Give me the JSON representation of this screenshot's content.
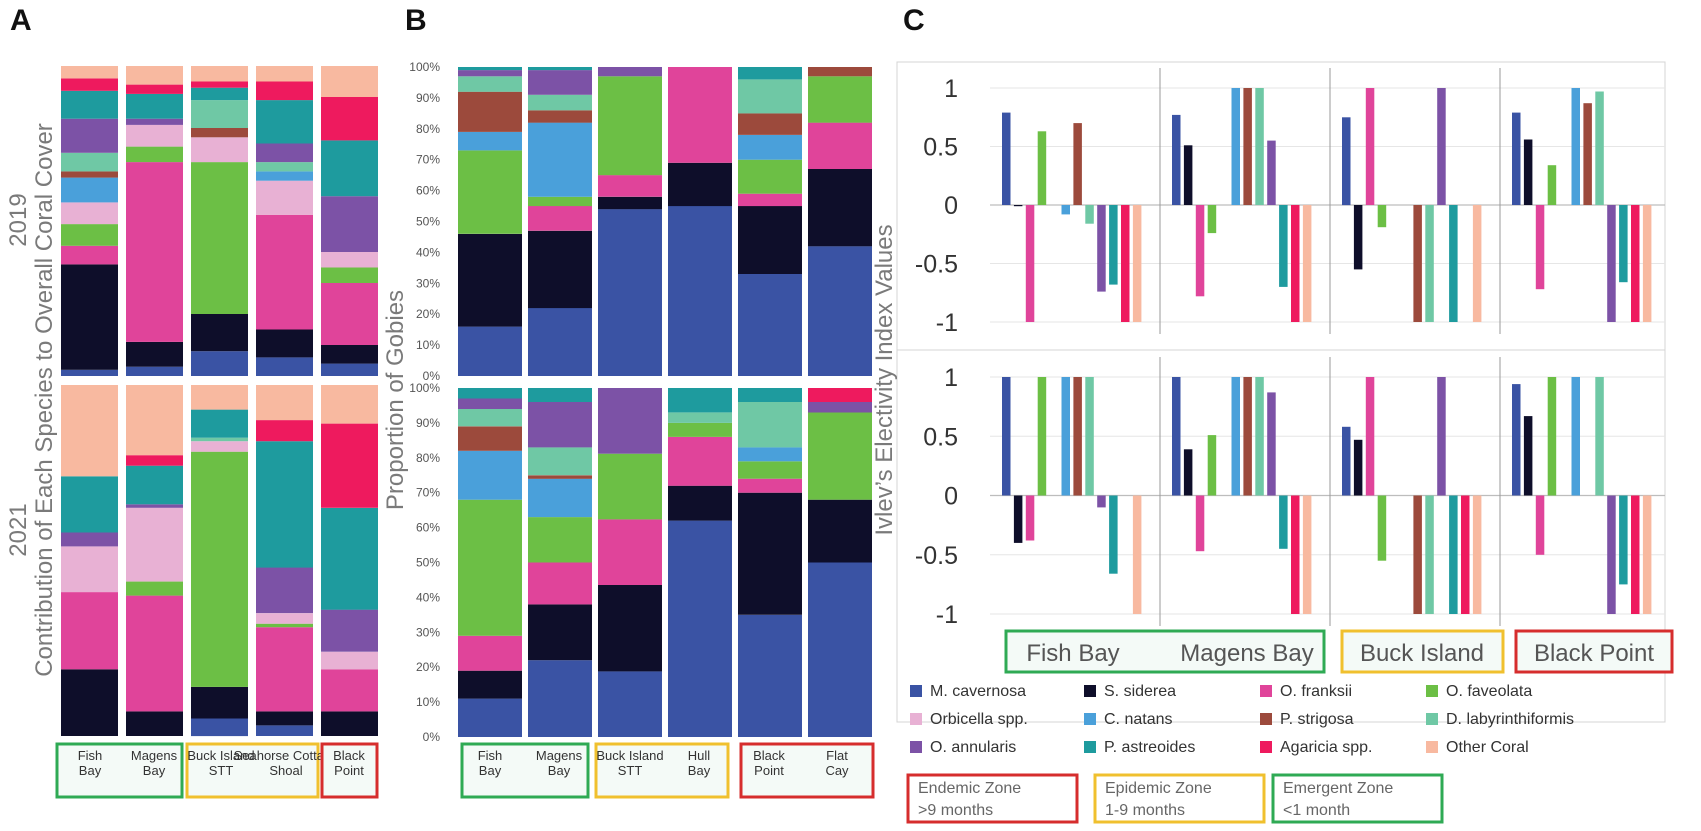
{
  "panel_letters": [
    "A",
    "B",
    "C"
  ],
  "colors": {
    "M. cavernosa": "#3a53a4",
    "S. siderea": "#0e0e2a",
    "O. franksii": "#e0449a",
    "O. faveolata": "#6cbf45",
    "Orbicella spp.": "#e8b1d4",
    "C. natans": "#4aa0da",
    "P. strigosa": "#9c4a3c",
    "D. labyrinthiformis": "#6fc8a5",
    "O. annularis": "#7c52a6",
    "P. astreoides": "#1e9b9e",
    "Agaricia spp.": "#ee1a5e",
    "Other Coral": "#f8b9a0",
    "zone_endemic": "#d62d2d",
    "zone_epidemic": "#f0c02e",
    "zone_emergent": "#2faa54"
  },
  "panelA": {
    "ylabel_2019": "2019",
    "ylabel_2021": "2021",
    "ylabel_main": "Contribution of Each Species to Overall Coral Cover",
    "sites": [
      "Fish Bay",
      "Magens Bay",
      "Buck Island STT",
      "Seahorse Cottage Shoal",
      "Black Point"
    ]
  },
  "panelB": {
    "ylabel": "Proportion of Gobies",
    "sites": [
      "Fish Bay",
      "Magens Bay",
      "Buck Island STT",
      "Hull Bay",
      "Black Point",
      "Flat Cay"
    ],
    "yticks": [
      "0%",
      "10%",
      "20%",
      "30%",
      "40%",
      "50%",
      "60%",
      "70%",
      "80%",
      "90%",
      "100%"
    ]
  },
  "panelC": {
    "ylabel": "Ivlev’s Electivity Index Values",
    "yticks": [
      "1",
      "0.5",
      "0",
      "-0.5",
      "-1"
    ],
    "sites": [
      "Fish Bay",
      "Magens Bay",
      "Buck Island",
      "Black Point"
    ],
    "zones": [
      {
        "label": "Endemic Zone",
        "sub": ">9 months",
        "color": "zone_endemic"
      },
      {
        "label": "Epidemic Zone",
        "sub": "1-9 months",
        "color": "zone_epidemic"
      },
      {
        "label": "Emergent Zone",
        "sub": "<1 month",
        "color": "zone_emergent"
      }
    ]
  },
  "legend": [
    "M. cavernosa",
    "S. siderea",
    "O. franksii",
    "O. faveolata",
    "Orbicella spp.",
    "C. natans",
    "P. strigosa",
    "D. labyrinthiformis",
    "O. annularis",
    "P. astreoides",
    "Agaricia spp.",
    "Other Coral"
  ],
  "chart_data": [
    {
      "panel": "A",
      "type": "bar",
      "stacked": true,
      "title": "2019",
      "ylabel": "Contribution of Each Species to Overall Coral Cover",
      "categories": [
        "Fish Bay",
        "Magens Bay",
        "Buck Island STT",
        "Seahorse Cottage Shoal",
        "Black Point"
      ],
      "series": [
        {
          "name": "M. cavernosa",
          "values": [
            2,
            3,
            8,
            6,
            4
          ]
        },
        {
          "name": "S. siderea",
          "values": [
            34,
            8,
            12,
            9,
            6
          ]
        },
        {
          "name": "O. franksii",
          "values": [
            6,
            58,
            0,
            37,
            20
          ]
        },
        {
          "name": "O. faveolata",
          "values": [
            7,
            5,
            49,
            0,
            5
          ]
        },
        {
          "name": "Orbicella spp.",
          "values": [
            7,
            7,
            8,
            11,
            5
          ]
        },
        {
          "name": "C. natans",
          "values": [
            8,
            0,
            0,
            3,
            0
          ]
        },
        {
          "name": "P. strigosa",
          "values": [
            2,
            0,
            3,
            0,
            0
          ]
        },
        {
          "name": "D. labyrinthiformis",
          "values": [
            6,
            0,
            9,
            3,
            0
          ]
        },
        {
          "name": "O. annularis",
          "values": [
            11,
            2,
            0,
            6,
            18
          ]
        },
        {
          "name": "P. astreoides",
          "values": [
            9,
            8,
            4,
            14,
            18
          ]
        },
        {
          "name": "Agaricia spp.",
          "values": [
            4,
            3,
            2,
            6,
            14
          ]
        },
        {
          "name": "Other Coral",
          "values": [
            4,
            6,
            5,
            5,
            10
          ]
        }
      ]
    },
    {
      "panel": "A",
      "type": "bar",
      "stacked": true,
      "title": "2021",
      "ylabel": "Contribution of Each Species to Overall Coral Cover",
      "categories": [
        "Fish Bay",
        "Magens Bay",
        "Buck Island STT",
        "Seahorse Cottage Shoal",
        "Black Point"
      ],
      "series": [
        {
          "name": "M. cavernosa",
          "values": [
            0,
            0,
            5,
            3,
            0
          ]
        },
        {
          "name": "S. siderea",
          "values": [
            19,
            7,
            9,
            4,
            7
          ]
        },
        {
          "name": "O. franksii",
          "values": [
            22,
            33,
            0,
            24,
            12
          ]
        },
        {
          "name": "O. faveolata",
          "values": [
            0,
            4,
            67,
            1,
            0
          ]
        },
        {
          "name": "Orbicella spp.",
          "values": [
            13,
            21,
            3,
            3,
            5
          ]
        },
        {
          "name": "C. natans",
          "values": [
            0,
            0,
            0,
            0,
            0
          ]
        },
        {
          "name": "P. strigosa",
          "values": [
            0,
            0,
            0,
            0,
            0
          ]
        },
        {
          "name": "D. labyrinthiformis",
          "values": [
            0,
            0,
            1,
            0,
            0
          ]
        },
        {
          "name": "O. annularis",
          "values": [
            4,
            1,
            0,
            13,
            12
          ]
        },
        {
          "name": "P. astreoides",
          "values": [
            16,
            11,
            8,
            36,
            29
          ]
        },
        {
          "name": "Agaricia spp.",
          "values": [
            0,
            3,
            0,
            6,
            24
          ]
        },
        {
          "name": "Other Coral",
          "values": [
            26,
            20,
            7,
            10,
            11
          ]
        }
      ]
    },
    {
      "panel": "B",
      "type": "bar",
      "stacked": true,
      "title": "2019",
      "ylabel": "Proportion of Gobies",
      "ylim": [
        0,
        100
      ],
      "categories": [
        "Fish Bay",
        "Magens Bay",
        "Buck Island STT",
        "Hull Bay",
        "Black Point",
        "Flat Cay"
      ],
      "series": [
        {
          "name": "M. cavernosa",
          "values": [
            16,
            22,
            54,
            55,
            33,
            42
          ]
        },
        {
          "name": "S. siderea",
          "values": [
            30,
            25,
            4,
            14,
            22,
            25
          ]
        },
        {
          "name": "O. franksii",
          "values": [
            0,
            8,
            7,
            31,
            4,
            15
          ]
        },
        {
          "name": "O. faveolata",
          "values": [
            27,
            3,
            32,
            0,
            11,
            15
          ]
        },
        {
          "name": "Orbicella spp.",
          "values": [
            0,
            0,
            0,
            0,
            0,
            0
          ]
        },
        {
          "name": "C. natans",
          "values": [
            6,
            24,
            0,
            0,
            8,
            0
          ]
        },
        {
          "name": "P. strigosa",
          "values": [
            13,
            4,
            0,
            0,
            7,
            3
          ]
        },
        {
          "name": "D. labyrinthiformis",
          "values": [
            5,
            5,
            0,
            0,
            11,
            0
          ]
        },
        {
          "name": "O. annularis",
          "values": [
            2,
            8,
            3,
            0,
            0,
            0
          ]
        },
        {
          "name": "P. astreoides",
          "values": [
            1,
            1,
            0,
            0,
            4,
            0
          ]
        },
        {
          "name": "Agaricia spp.",
          "values": [
            0,
            0,
            0,
            0,
            0,
            0
          ]
        },
        {
          "name": "Other Coral",
          "values": [
            0,
            0,
            0,
            0,
            0,
            0
          ]
        }
      ]
    },
    {
      "panel": "B",
      "type": "bar",
      "stacked": true,
      "title": "2021",
      "ylabel": "Proportion of Gobies",
      "ylim": [
        0,
        100
      ],
      "categories": [
        "Fish Bay",
        "Magens Bay",
        "Buck Island STT",
        "Hull Bay",
        "Black Point",
        "Flat Cay"
      ],
      "series": [
        {
          "name": "M. cavernosa",
          "values": [
            11,
            22,
            19,
            62,
            35,
            50
          ]
        },
        {
          "name": "S. siderea",
          "values": [
            8,
            16,
            25,
            10,
            35,
            18
          ]
        },
        {
          "name": "O. franksii",
          "values": [
            10,
            12,
            19,
            14,
            4,
            0
          ]
        },
        {
          "name": "O. faveolata",
          "values": [
            39,
            13,
            19,
            4,
            5,
            25
          ]
        },
        {
          "name": "Orbicella spp.",
          "values": [
            0,
            0,
            0,
            0,
            0,
            0
          ]
        },
        {
          "name": "C. natans",
          "values": [
            14,
            11,
            0,
            0,
            4,
            0
          ]
        },
        {
          "name": "P. strigosa",
          "values": [
            7,
            1,
            0,
            0,
            0,
            0
          ]
        },
        {
          "name": "D. labyrinthiformis",
          "values": [
            5,
            8,
            0,
            3,
            13,
            0
          ]
        },
        {
          "name": "O. annularis",
          "values": [
            3,
            13,
            19,
            0,
            0,
            3
          ]
        },
        {
          "name": "P. astreoides",
          "values": [
            3,
            4,
            0,
            7,
            4,
            0
          ]
        },
        {
          "name": "Agaricia spp.",
          "values": [
            0,
            0,
            0,
            0,
            0,
            4
          ]
        },
        {
          "name": "Other Coral",
          "values": [
            0,
            0,
            0,
            0,
            0,
            0
          ]
        }
      ]
    },
    {
      "panel": "C",
      "type": "bar",
      "title": "2019",
      "ylabel": "Ivlev’s Electivity Index Values",
      "ylim": [
        -1,
        1
      ],
      "categories": [
        "Fish Bay",
        "Magens Bay",
        "Buck Island",
        "Black Point"
      ],
      "series": [
        {
          "name": "M. cavernosa",
          "values": [
            0.79,
            0.77,
            0.75,
            0.79
          ]
        },
        {
          "name": "S. siderea",
          "values": [
            -0.01,
            0.51,
            -0.55,
            0.56
          ]
        },
        {
          "name": "O. franksii",
          "values": [
            -1,
            -0.78,
            1,
            -0.72
          ]
        },
        {
          "name": "O. faveolata",
          "values": [
            0.63,
            -0.24,
            -0.19,
            0.34
          ]
        },
        {
          "name": "Orbicella spp.",
          "values": [
            null,
            null,
            null,
            null
          ]
        },
        {
          "name": "C. natans",
          "values": [
            -0.08,
            1,
            null,
            1
          ]
        },
        {
          "name": "P. strigosa",
          "values": [
            0.7,
            1,
            -1,
            0.87
          ]
        },
        {
          "name": "D. labyrinthiformis",
          "values": [
            -0.16,
            1,
            -1,
            0.97
          ]
        },
        {
          "name": "O. annularis",
          "values": [
            -0.74,
            0.55,
            1,
            -1
          ]
        },
        {
          "name": "P. astreoides",
          "values": [
            -0.68,
            -0.7,
            -1,
            -0.66
          ]
        },
        {
          "name": "Agaricia spp.",
          "values": [
            -1,
            -1,
            null,
            -1
          ]
        },
        {
          "name": "Other Coral",
          "values": [
            -1,
            -1,
            -1,
            -1
          ]
        }
      ]
    },
    {
      "panel": "C",
      "type": "bar",
      "title": "2021",
      "ylabel": "Ivlev’s Electivity Index Values",
      "ylim": [
        -1,
        1
      ],
      "categories": [
        "Fish Bay",
        "Magens Bay",
        "Buck Island",
        "Black Point"
      ],
      "series": [
        {
          "name": "M. cavernosa",
          "values": [
            1,
            1,
            0.58,
            0.94
          ]
        },
        {
          "name": "S. siderea",
          "values": [
            -0.4,
            0.39,
            0.47,
            0.67
          ]
        },
        {
          "name": "O. franksii",
          "values": [
            -0.38,
            -0.47,
            1,
            -0.5
          ]
        },
        {
          "name": "O. faveolata",
          "values": [
            1,
            0.51,
            -0.55,
            1
          ]
        },
        {
          "name": "Orbicella spp.",
          "values": [
            null,
            null,
            null,
            null
          ]
        },
        {
          "name": "C. natans",
          "values": [
            1,
            1,
            null,
            1
          ]
        },
        {
          "name": "P. strigosa",
          "values": [
            1,
            1,
            -1,
            null
          ]
        },
        {
          "name": "D. labyrinthiformis",
          "values": [
            1,
            1,
            -1,
            1
          ]
        },
        {
          "name": "O. annularis",
          "values": [
            -0.1,
            0.87,
            1,
            -1
          ]
        },
        {
          "name": "P. astreoides",
          "values": [
            -0.66,
            -0.45,
            -1,
            -0.75
          ]
        },
        {
          "name": "Agaricia spp.",
          "values": [
            null,
            -1,
            -1,
            -1
          ]
        },
        {
          "name": "Other Coral",
          "values": [
            -1,
            -1,
            -1,
            -1
          ]
        }
      ]
    }
  ]
}
